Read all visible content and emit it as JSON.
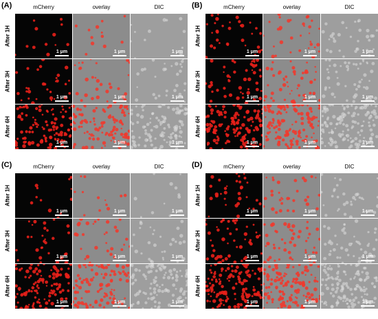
{
  "panels": [
    {
      "label": "(A)",
      "columns": [
        "mCherry",
        "overlay",
        "DIC"
      ],
      "rows": [
        {
          "label": "After 1H",
          "scale_bars": [
            "1 μm",
            "1 μm",
            "1 μm"
          ]
        },
        {
          "label": "After 3H",
          "scale_bars": [
            "1 μm",
            "1 μm",
            "1 μm"
          ]
        },
        {
          "label": "After 6H",
          "scale_bars": [
            "1 μm",
            "1 μm",
            "1 μm"
          ]
        }
      ]
    },
    {
      "label": "(B)",
      "columns": [
        "mCherry",
        "overlay",
        "DIC"
      ],
      "rows": [
        {
          "label": "After 1H",
          "scale_bars": [
            "1 μm",
            "1 μm",
            "1 μm"
          ]
        },
        {
          "label": "After 3H",
          "scale_bars": [
            "1 μm",
            "1 μm",
            "1 μm"
          ]
        },
        {
          "label": "After 6H",
          "scale_bars": [
            "1 μm",
            "1 μm",
            "1 μm"
          ]
        }
      ]
    },
    {
      "label": "(C)",
      "columns": [
        "mCherry",
        "overlay",
        "DIC"
      ],
      "rows": [
        {
          "label": "After 1H",
          "scale_bars": [
            "1 μm",
            "1 μm",
            "1 μm"
          ]
        },
        {
          "label": "After 3H",
          "scale_bars": [
            "1 μm",
            "1 μm",
            "1 μm"
          ]
        },
        {
          "label": "After 6H",
          "scale_bars": [
            "1 μm",
            "1 μm",
            "1 μm"
          ]
        }
      ]
    },
    {
      "label": "(D)",
      "columns": [
        "mCherry",
        "overlay",
        "DIC"
      ],
      "rows": [
        {
          "label": "After 1H",
          "scale_bars": [
            "1 μm",
            "1 μm",
            "1 μm"
          ]
        },
        {
          "label": "After 3H",
          "scale_bars": [
            "1 μm",
            "1 μm",
            "1 μm"
          ]
        },
        {
          "label": "After 6H",
          "scale_bars": [
            "1 μm",
            "1 μm",
            "1 μm"
          ]
        }
      ]
    }
  ]
}
